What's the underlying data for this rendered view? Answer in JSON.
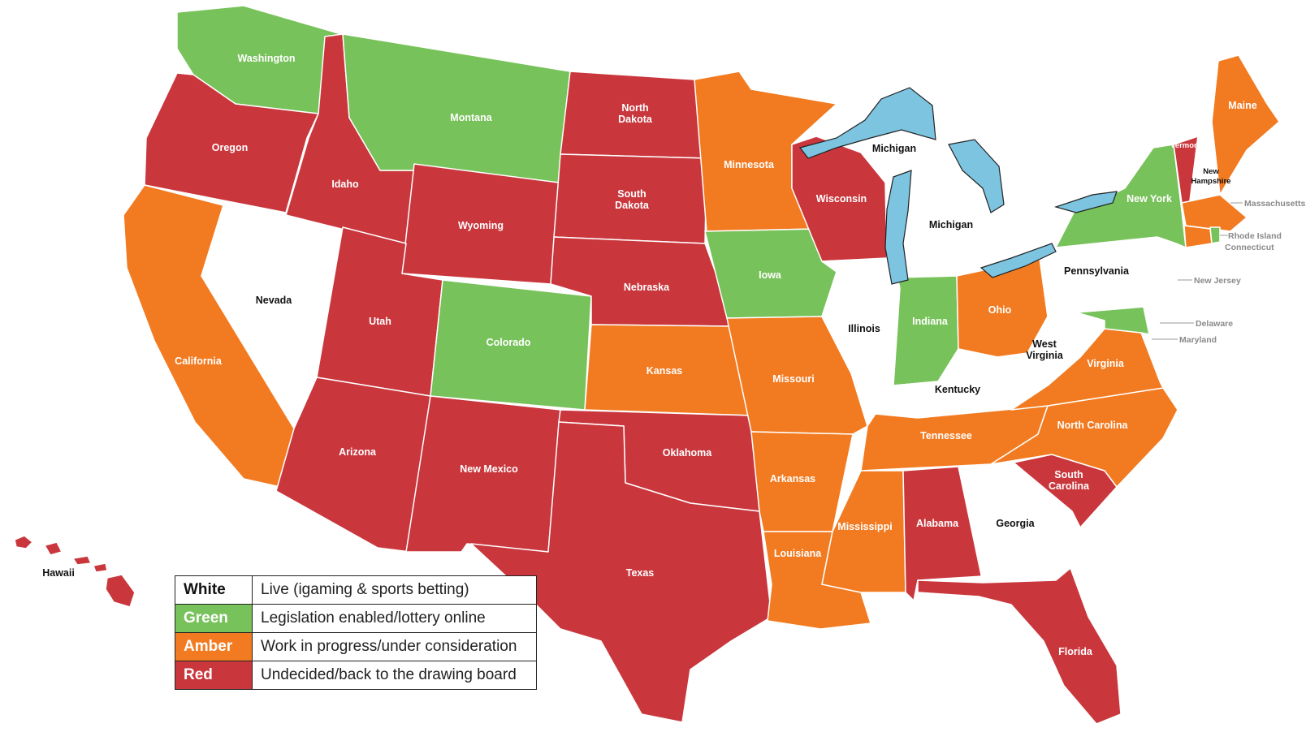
{
  "colors": {
    "white": "#ffffff",
    "green": "#78c25b",
    "amber": "#f27b21",
    "red": "#c9373d",
    "lake": "#7cc4e0"
  },
  "legend": [
    {
      "key": "White",
      "desc": "Live (igaming & sports betting)",
      "color": "#ffffff",
      "text_color": "#111111"
    },
    {
      "key": "Green",
      "desc": "Legislation enabled/lottery online",
      "color": "#78c25b",
      "text_color": "#ffffff"
    },
    {
      "key": "Amber",
      "desc": "Work in progress/under consideration",
      "color": "#f27b21",
      "text_color": "#ffffff"
    },
    {
      "key": "Red",
      "desc": "Undecided/back to the drawing board",
      "color": "#c9373d",
      "text_color": "#ffffff"
    }
  ],
  "states": {
    "washington": {
      "name": "Washington",
      "status": "green"
    },
    "oregon": {
      "name": "Oregon",
      "status": "red"
    },
    "california": {
      "name": "California",
      "status": "amber"
    },
    "nevada": {
      "name": "Nevada",
      "status": "white"
    },
    "idaho": {
      "name": "Idaho",
      "status": "red"
    },
    "montana": {
      "name": "Montana",
      "status": "green"
    },
    "wyoming": {
      "name": "Wyoming",
      "status": "red"
    },
    "utah": {
      "name": "Utah",
      "status": "red"
    },
    "arizona": {
      "name": "Arizona",
      "status": "red"
    },
    "colorado": {
      "name": "Colorado",
      "status": "green"
    },
    "new_mexico": {
      "name": "New Mexico",
      "status": "red"
    },
    "north_dakota": {
      "name": "North Dakota",
      "status": "red"
    },
    "south_dakota": {
      "name": "South Dakota",
      "status": "red"
    },
    "nebraska": {
      "name": "Nebraska",
      "status": "red"
    },
    "kansas": {
      "name": "Kansas",
      "status": "amber"
    },
    "oklahoma": {
      "name": "Oklahoma",
      "status": "red"
    },
    "texas": {
      "name": "Texas",
      "status": "red"
    },
    "minnesota": {
      "name": "Minnesota",
      "status": "amber"
    },
    "iowa": {
      "name": "Iowa",
      "status": "green"
    },
    "missouri": {
      "name": "Missouri",
      "status": "amber"
    },
    "arkansas": {
      "name": "Arkansas",
      "status": "amber"
    },
    "louisiana": {
      "name": "Louisiana",
      "status": "amber"
    },
    "wisconsin": {
      "name": "Wisconsin",
      "status": "red"
    },
    "illinois": {
      "name": "Illinois",
      "status": "white"
    },
    "michigan": {
      "name": "Michigan",
      "status": "white"
    },
    "michigan_up": {
      "name": "Michigan",
      "status": "white"
    },
    "indiana": {
      "name": "Indiana",
      "status": "green"
    },
    "ohio": {
      "name": "Ohio",
      "status": "amber"
    },
    "kentucky": {
      "name": "Kentucky",
      "status": "white"
    },
    "tennessee": {
      "name": "Tennessee",
      "status": "amber"
    },
    "mississippi": {
      "name": "Mississippi",
      "status": "amber"
    },
    "alabama": {
      "name": "Alabama",
      "status": "red"
    },
    "georgia": {
      "name": "Georgia",
      "status": "white"
    },
    "florida": {
      "name": "Florida",
      "status": "red"
    },
    "south_carolina": {
      "name": "South Carolina",
      "status": "red"
    },
    "north_carolina": {
      "name": "North Carolina",
      "status": "amber"
    },
    "virginia": {
      "name": "Virginia",
      "status": "amber"
    },
    "west_virginia": {
      "name": "West Virginia",
      "status": "white"
    },
    "pennsylvania": {
      "name": "Pennsylvania",
      "status": "white"
    },
    "new_york": {
      "name": "New York",
      "status": "green"
    },
    "vermont": {
      "name": "Vermont",
      "status": "red"
    },
    "new_hampshire": {
      "name": "New Hampshire",
      "status": "white"
    },
    "maine": {
      "name": "Maine",
      "status": "amber"
    },
    "massachusetts": {
      "name": "Massachusetts",
      "status": "amber"
    },
    "rhode_island": {
      "name": "Rhode Island",
      "status": "green"
    },
    "connecticut": {
      "name": "Connecticut",
      "status": "amber"
    },
    "new_jersey": {
      "name": "New Jersey",
      "status": "white"
    },
    "delaware": {
      "name": "Delaware",
      "status": "white"
    },
    "maryland": {
      "name": "Maryland",
      "status": "green"
    },
    "hawaii": {
      "name": "Hawaii",
      "status": "red"
    }
  }
}
